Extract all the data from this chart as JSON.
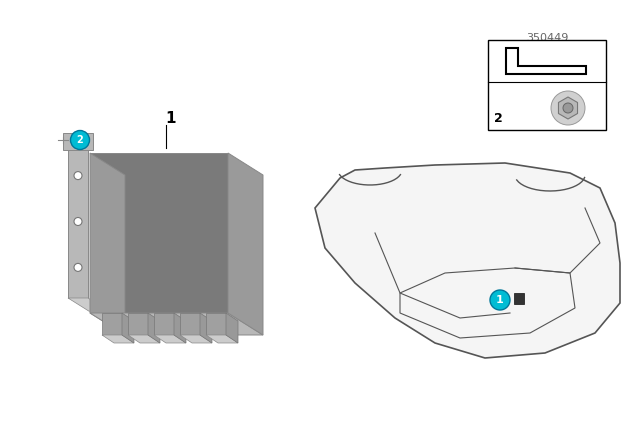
{
  "bg_color": "#ffffff",
  "part_number": "350449",
  "circle_color": "#00bcd4",
  "circle_border": "#007799",
  "gray_dark": "#7a7a7a",
  "gray_mid": "#9a9a9a",
  "gray_light": "#b8b8b8",
  "gray_lighter": "#cccccc",
  "gray_outline": "#888888",
  "gray_connector": "#a0a0a0",
  "wire_color": "#bbbbbb",
  "car_outline": "#555555",
  "car_fill": "#f5f5f5"
}
